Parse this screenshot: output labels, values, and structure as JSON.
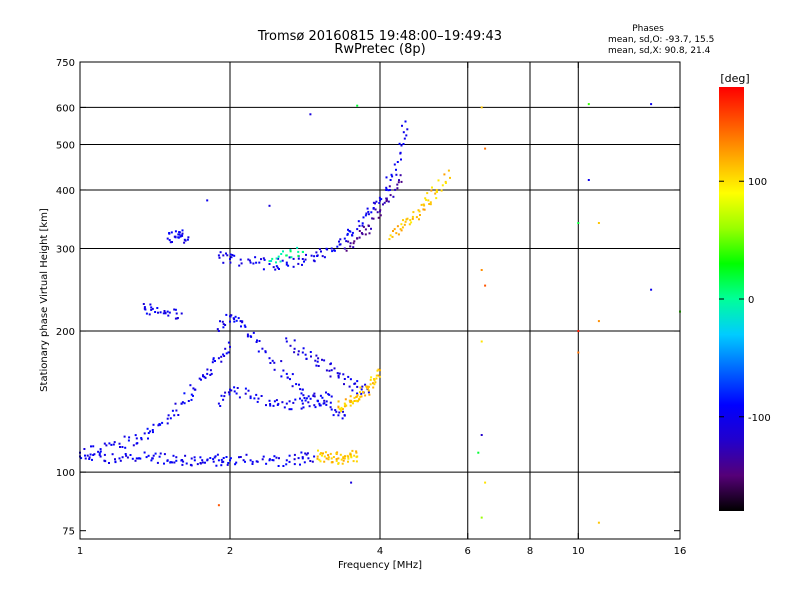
{
  "chart_data": {
    "type": "scatter",
    "title": "Tromsø 20160815 19:48:00–19:49:43",
    "subtitle": "RwPretec (8p)",
    "xlabel": "Frequency [MHz]",
    "ylabel": "Stationary phase Virtual Height [km]",
    "xscale": "log",
    "yscale": "log",
    "xlim": [
      1,
      16
    ],
    "ylim": [
      72,
      750
    ],
    "xticks": [
      1,
      2,
      4,
      6,
      8,
      10,
      16
    ],
    "xtick_labels": [
      "1",
      "2",
      "4",
      "6",
      "8",
      "10",
      "16"
    ],
    "yticks": [
      75,
      100,
      200,
      300,
      400,
      500,
      600,
      750
    ],
    "ytick_labels": [
      "75",
      "100",
      "200",
      "300",
      "400",
      "500",
      "600",
      "750"
    ],
    "x_gridlines": [
      2,
      4,
      6,
      8,
      10
    ],
    "y_gridlines": [
      100,
      200,
      300,
      400,
      500,
      600
    ],
    "grid": true,
    "phase_info": {
      "heading": "Phases",
      "o_line": "mean, sd,O: -93.7, 15.5",
      "x_line": "mean, sd,X:  90.8, 21.4"
    },
    "colorbar": {
      "label": "[deg]",
      "range": [
        -180,
        180
      ],
      "ticks": [
        100,
        0,
        -100
      ],
      "tick_labels": [
        "100",
        "0",
        "-100"
      ],
      "colormap": [
        "#000000",
        "#550077",
        "#2200cc",
        "#0000ff",
        "#0066ff",
        "#00ccff",
        "#00ff99",
        "#00ff00",
        "#99ff00",
        "#ffff00",
        "#ffaa00",
        "#ff5500",
        "#ff0000"
      ]
    },
    "traces": [
      {
        "name": "",
        "phase": -100,
        "x": [
          1.0,
          1.1,
          1.2,
          1.3,
          1.4,
          1.5,
          1.6,
          1.7,
          1.8,
          1.9,
          2.0,
          2.2,
          2.4,
          2.6,
          2.8,
          2.95
        ],
        "y": [
          108,
          108,
          107,
          107,
          107,
          106,
          106,
          106,
          106,
          106,
          106,
          106,
          106,
          106,
          107,
          108
        ]
      },
      {
        "name": "",
        "phase": 110,
        "x": [
          3.0,
          3.1,
          3.2,
          3.3,
          3.4,
          3.5,
          3.6
        ],
        "y": [
          108,
          108,
          107,
          107,
          107,
          108,
          108
        ]
      },
      {
        "name": "",
        "phase": -100,
        "x": [
          1.0,
          1.1,
          1.2,
          1.3,
          1.4,
          1.5,
          1.6,
          1.7,
          1.8,
          1.9,
          2.0
        ],
        "y": [
          110,
          112,
          115,
          118,
          123,
          130,
          140,
          150,
          162,
          175,
          185
        ]
      },
      {
        "name": "",
        "phase": -100,
        "x": [
          1.9,
          2.0,
          2.1,
          2.2,
          2.4,
          2.6,
          2.8,
          3.0,
          3.2,
          3.4
        ],
        "y": [
          200,
          215,
          210,
          195,
          175,
          162,
          150,
          142,
          136,
          132
        ]
      },
      {
        "name": "",
        "phase": -100,
        "x": [
          1.9,
          2.0,
          2.2,
          2.4,
          2.6,
          2.8,
          3.0,
          3.2
        ],
        "y": [
          140,
          150,
          145,
          142,
          140,
          140,
          142,
          145
        ]
      },
      {
        "name": "",
        "phase": -105,
        "x": [
          2.6,
          2.8,
          3.0,
          3.2,
          3.4,
          3.6,
          3.8
        ],
        "y": [
          190,
          180,
          172,
          165,
          158,
          152,
          148
        ]
      },
      {
        "name": "",
        "phase": 110,
        "x": [
          3.3,
          3.4,
          3.5,
          3.6,
          3.7,
          3.8,
          3.9,
          4.0
        ],
        "y": [
          138,
          140,
          142,
          145,
          148,
          152,
          157,
          165
        ]
      },
      {
        "name": "",
        "phase": -100,
        "x": [
          1.9,
          2.0,
          2.2,
          2.4,
          2.6,
          2.8,
          3.0,
          3.2,
          3.4,
          3.6,
          3.8,
          4.0,
          4.2,
          4.4,
          4.5
        ],
        "y": [
          290,
          285,
          280,
          278,
          280,
          285,
          290,
          300,
          315,
          330,
          355,
          380,
          420,
          480,
          560
        ]
      },
      {
        "name": "",
        "phase": -135,
        "x": [
          3.4,
          3.6,
          3.8,
          4.0,
          4.2,
          4.4
        ],
        "y": [
          300,
          315,
          335,
          360,
          390,
          430
        ]
      },
      {
        "name": "",
        "phase": 0,
        "x": [
          2.4,
          2.6,
          2.8
        ],
        "y": [
          282,
          290,
          295
        ]
      },
      {
        "name": "",
        "phase": 110,
        "x": [
          4.2,
          4.4,
          4.6,
          4.8,
          5.0,
          5.2,
          5.5
        ],
        "y": [
          320,
          330,
          345,
          360,
          380,
          400,
          440
        ]
      },
      {
        "name": "",
        "phase": -100,
        "x": [
          1.5,
          1.55,
          1.6,
          1.65
        ],
        "y": [
          315,
          318,
          320,
          317
        ]
      },
      {
        "name": "",
        "phase": -100,
        "x": [
          1.35,
          1.4,
          1.5,
          1.6
        ],
        "y": [
          225,
          223,
          220,
          218
        ]
      }
    ],
    "outliers": [
      {
        "x": 6.4,
        "y": 600,
        "phase": 110
      },
      {
        "x": 6.5,
        "y": 490,
        "phase": 140
      },
      {
        "x": 6.4,
        "y": 270,
        "phase": 130
      },
      {
        "x": 6.5,
        "y": 250,
        "phase": 150
      },
      {
        "x": 6.4,
        "y": 190,
        "phase": 100
      },
      {
        "x": 6.4,
        "y": 120,
        "phase": -120
      },
      {
        "x": 6.3,
        "y": 110,
        "phase": 20
      },
      {
        "x": 6.5,
        "y": 95,
        "phase": 100
      },
      {
        "x": 6.4,
        "y": 80,
        "phase": 60
      },
      {
        "x": 10.0,
        "y": 200,
        "phase": 170
      },
      {
        "x": 10.0,
        "y": 180,
        "phase": 140
      },
      {
        "x": 10.5,
        "y": 420,
        "phase": -100
      },
      {
        "x": 10.0,
        "y": 340,
        "phase": 20
      },
      {
        "x": 11.0,
        "y": 340,
        "phase": 110
      },
      {
        "x": 11.0,
        "y": 210,
        "phase": 130
      },
      {
        "x": 10.5,
        "y": 610,
        "phase": 40
      },
      {
        "x": 14.0,
        "y": 610,
        "phase": -100
      },
      {
        "x": 14.0,
        "y": 245,
        "phase": -100
      },
      {
        "x": 16.0,
        "y": 220,
        "phase": 40
      },
      {
        "x": 11.0,
        "y": 78,
        "phase": 110
      },
      {
        "x": 2.9,
        "y": 580,
        "phase": -110
      },
      {
        "x": 3.6,
        "y": 605,
        "phase": 20
      },
      {
        "x": 3.5,
        "y": 95,
        "phase": -110
      },
      {
        "x": 1.9,
        "y": 85,
        "phase": 150
      },
      {
        "x": 2.4,
        "y": 370,
        "phase": -110
      },
      {
        "x": 1.8,
        "y": 380,
        "phase": -100
      }
    ]
  }
}
